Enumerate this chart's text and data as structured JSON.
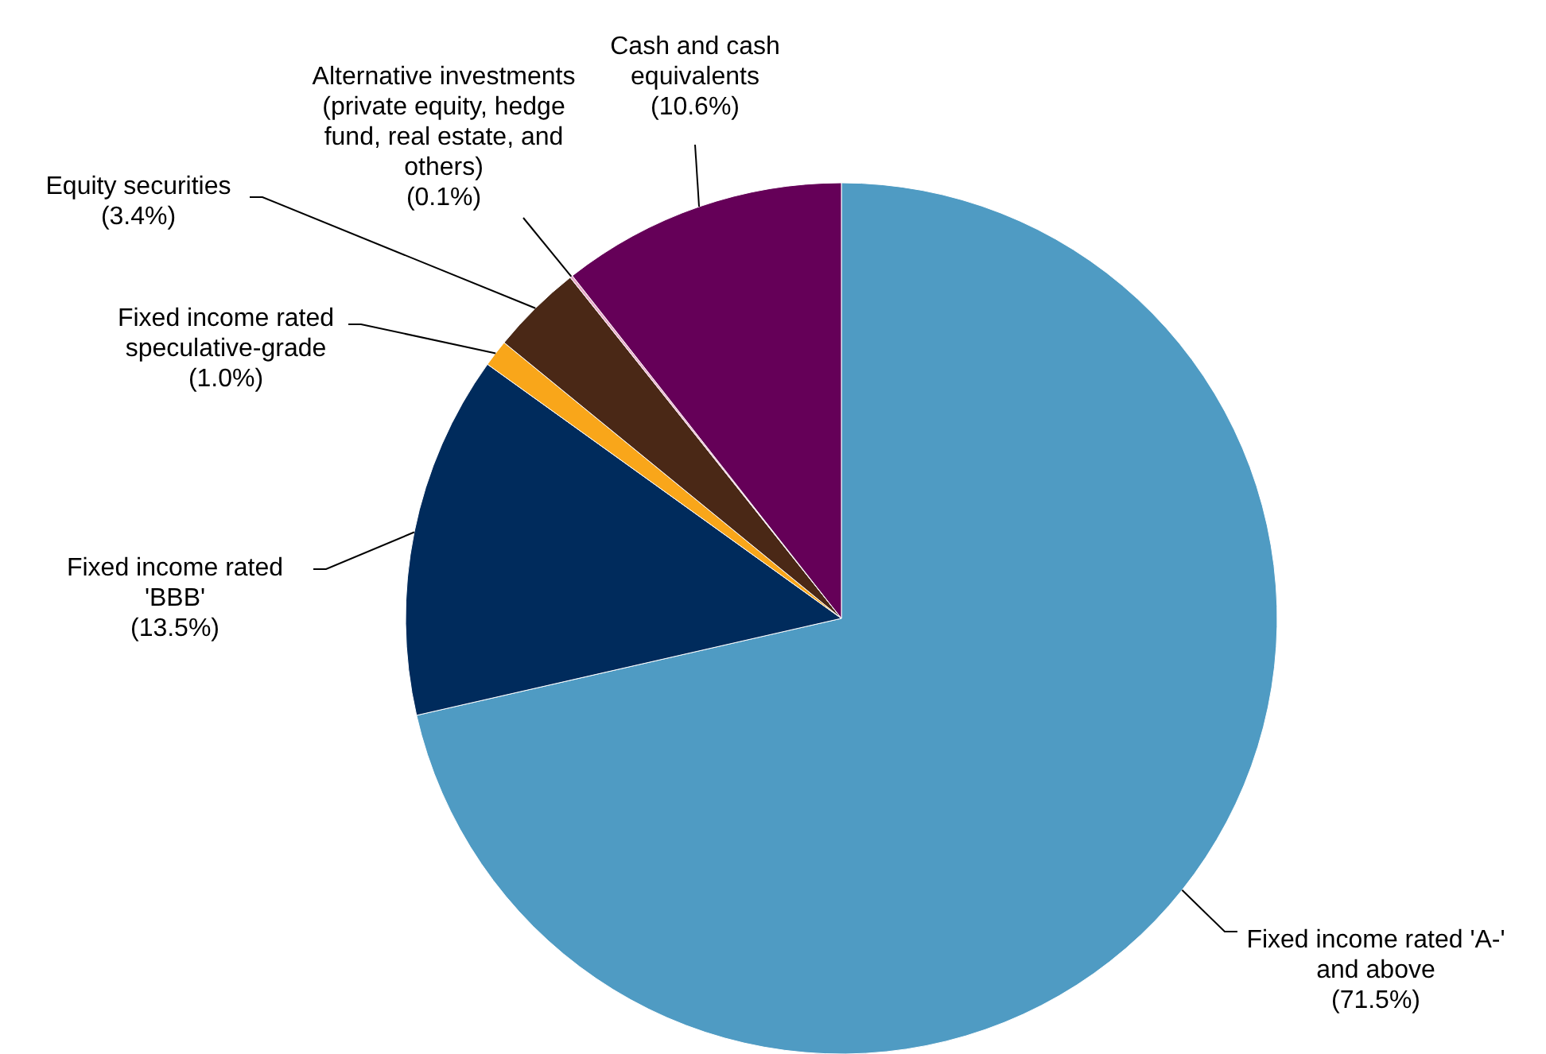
{
  "chart_data": {
    "type": "pie",
    "categories": [
      "Fixed income rated 'A-' and above",
      "Fixed income rated 'BBB'",
      "Fixed income rated speculative-grade",
      "Equity securities",
      "Alternative investments (private equity, hedge fund, real estate, and others)",
      "Cash and cash equivalents"
    ],
    "values": [
      71.5,
      13.5,
      1.0,
      3.4,
      0.1,
      10.6
    ],
    "value_labels": [
      "(71.5%)",
      "(13.5%)",
      "(1.0%)",
      "(3.4%)",
      "(0.1%)",
      "(10.6%)"
    ],
    "colors": [
      "#4f9bc3",
      "#002b5c",
      "#f9a61a",
      "#4a2816",
      "#e8a9c9",
      "#650058"
    ],
    "legend": false
  }
}
